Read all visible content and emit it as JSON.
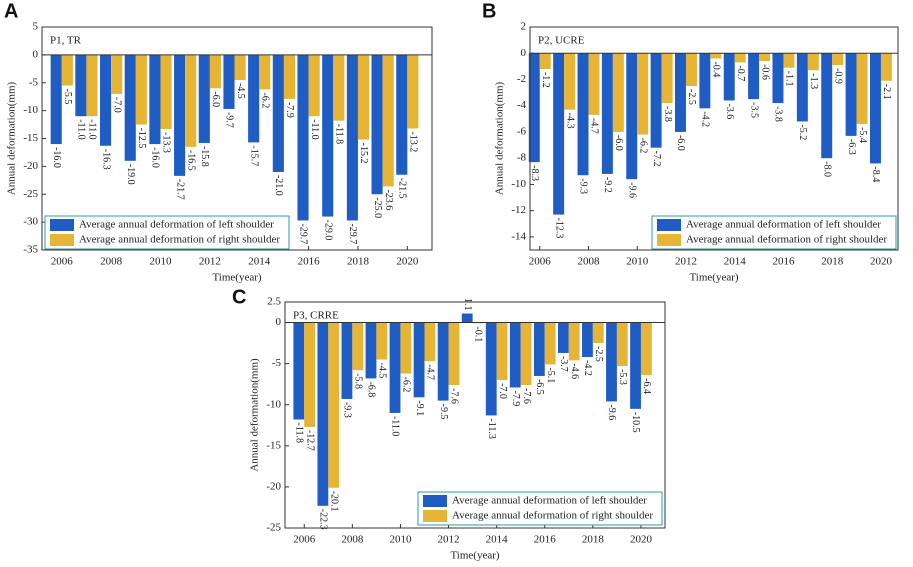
{
  "chart_data": [
    {
      "type": "bar",
      "panel": "A",
      "title": "P1, TR",
      "xlabel": "Time(year)",
      "ylabel": "Annual deformation(mm)",
      "x": [
        2006,
        2007,
        2008,
        2009,
        2010,
        2011,
        2012,
        2013,
        2014,
        2015,
        2016,
        2017,
        2018,
        2019,
        2020
      ],
      "xlim": [
        2005.2,
        2021
      ],
      "xticks": [
        2006,
        2008,
        2010,
        2012,
        2014,
        2016,
        2018,
        2020
      ],
      "ylim": [
        -35,
        5
      ],
      "yticks": [
        -35,
        -30,
        -25,
        -20,
        -15,
        -10,
        -5,
        0,
        5
      ],
      "legend": "lower left",
      "series": [
        {
          "name": "Average annual deformation of left shoulder",
          "color": "#1f5cc4",
          "values": [
            -16.0,
            -11.0,
            -16.3,
            -19.0,
            -16.0,
            -21.7,
            -15.8,
            -9.7,
            -15.7,
            -21.0,
            -29.7,
            -29.0,
            -29.7,
            -25.0,
            -21.5
          ],
          "value_labels": [
            "-16.0",
            "-11.0",
            "-16.3",
            "-19.0",
            "-16.0",
            "-21.7",
            "-15.8",
            "-9.7",
            "-15.7",
            "-21.0",
            "-29.7",
            "-29.0",
            "-29.7",
            "-25.0",
            "-21.5"
          ]
        },
        {
          "name": "Average annual deformation of right shoulder",
          "color": "#e6b535",
          "values": [
            -5.5,
            -11.0,
            -7.0,
            -12.5,
            -13.3,
            -16.5,
            -6.0,
            -4.5,
            -6.2,
            -7.9,
            -11.0,
            -11.8,
            -15.2,
            -23.6,
            -13.2
          ],
          "value_labels": [
            "-5.5",
            "-11.0",
            "-7.0",
            "-12.5",
            "-13.3",
            "-16.5",
            "-6.0",
            "-4.5",
            "-6.2",
            "-7.9",
            "-11.0",
            "-11.8",
            "-15.2",
            "-23.6",
            "-13.2"
          ]
        }
      ]
    },
    {
      "type": "bar",
      "panel": "B",
      "title": "P2, UCRE",
      "xlabel": "Time(year)",
      "ylabel": "Annual deformation(mm)",
      "x": [
        2006,
        2007,
        2008,
        2009,
        2010,
        2011,
        2012,
        2013,
        2014,
        2015,
        2016,
        2017,
        2018,
        2019,
        2020
      ],
      "xlim": [
        2005.6,
        2020.7
      ],
      "xticks": [
        2006,
        2008,
        2010,
        2012,
        2014,
        2016,
        2018,
        2020
      ],
      "ylim": [
        -15,
        2
      ],
      "yticks": [
        -14,
        -12,
        -10,
        -8,
        -6,
        -4,
        -2,
        0,
        2
      ],
      "legend": "lower right",
      "series": [
        {
          "name": "Average annual deformation of left shoulder",
          "color": "#1f5cc4",
          "values": [
            -8.3,
            -12.3,
            -9.3,
            -9.2,
            -9.6,
            -7.2,
            -6.0,
            -4.2,
            -3.6,
            -3.5,
            -3.8,
            -5.2,
            -8.0,
            -6.3,
            -8.4
          ],
          "value_labels": [
            "-8.3",
            "-12.3",
            "-9.3",
            "-9.2",
            "-9.6",
            "-7.2",
            "-6.0",
            "-4.2",
            "-3.6",
            "-3.5",
            "-3.8",
            "-5.2",
            "-8.0",
            "-6.3",
            "-8.4"
          ]
        },
        {
          "name": "Average annual deformation of right shoulder",
          "color": "#e6b535",
          "values": [
            -1.2,
            -4.3,
            -4.7,
            -6.0,
            -6.2,
            -3.8,
            -2.5,
            -0.4,
            -0.7,
            -0.6,
            -1.1,
            -1.3,
            -0.9,
            -5.4,
            -2.1
          ],
          "value_labels": [
            "-1.2",
            "-4.3",
            "-4.7",
            "-6.0",
            "-6.2",
            "-3.8",
            "-2.5",
            "-0.4",
            "-0.7",
            "-0.6",
            "-1.1",
            "-1.3",
            "-0.9",
            "-5.4",
            "-2.1"
          ]
        }
      ]
    },
    {
      "type": "bar",
      "panel": "C",
      "title": "P3, CRRE",
      "xlabel": "Time(year)",
      "ylabel": "Annual deformation(mm)",
      "x": [
        2006,
        2007,
        2008,
        2009,
        2010,
        2011,
        2012,
        2013,
        2014,
        2015,
        2016,
        2017,
        2018,
        2019,
        2020
      ],
      "xlim": [
        2005.2,
        2021
      ],
      "xticks": [
        2006,
        2008,
        2010,
        2012,
        2014,
        2016,
        2018,
        2020
      ],
      "ylim": [
        -25,
        2.5
      ],
      "yticks": [
        -25,
        -20,
        -15,
        -10,
        -5,
        0,
        2.5
      ],
      "legend": "lower right",
      "series": [
        {
          "name": "Average annual deformation of left shoulder",
          "color": "#1f5cc4",
          "values": [
            -11.8,
            -22.3,
            -9.3,
            -6.8,
            -11.0,
            -9.1,
            -9.5,
            1.1,
            -11.3,
            -7.9,
            -6.5,
            -3.7,
            -4.2,
            -9.6,
            -10.5
          ],
          "value_labels": [
            "-11.8",
            "-22.3",
            "-9.3",
            "-6.8",
            "-11.0",
            "-9.1",
            "-9.5",
            "1.1",
            "-11.3",
            "-7.9",
            "-6.5",
            "-3.7",
            "-4.2",
            "-9.6",
            "-10.5"
          ]
        },
        {
          "name": "Average annual deformation of right shoulder",
          "color": "#e6b535",
          "values": [
            -12.7,
            -20.1,
            -5.8,
            -4.5,
            -6.2,
            -4.7,
            -7.6,
            -0.1,
            -7.0,
            -7.6,
            -5.1,
            -4.6,
            -2.5,
            -5.3,
            -6.4
          ],
          "value_labels": [
            "-12.7",
            "-20.1",
            "-5.8",
            "-4.5",
            "-6.2",
            "-4.7",
            "-7.6",
            "-0.1",
            "-7.0",
            "-7.6",
            "-5.1",
            "-4.6",
            "-2.5",
            "-5.3",
            "-6.4"
          ]
        }
      ]
    }
  ]
}
